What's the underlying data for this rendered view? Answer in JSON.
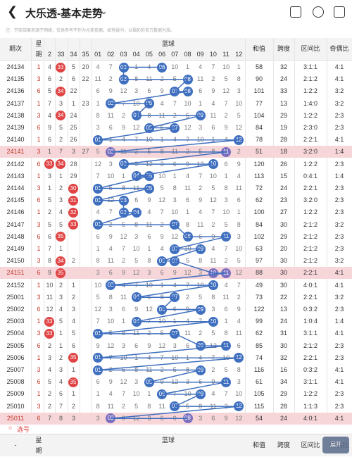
{
  "header": {
    "title": "大乐透-基本走势",
    "back_icon": "back-arrow-icon",
    "menu_icon": "chevron-down-icon"
  },
  "note": "注：开奖结果来源于网络，仅供参考不作为兑奖依据。如有疑问，以福彩彩官方数据为准。",
  "table_header": {
    "issue": "期次",
    "front_star": "星",
    "front_period": "期",
    "front_cols": [
      "2",
      "33",
      "34",
      "35"
    ],
    "blue_label": "蓝球",
    "blue_cols": [
      "01",
      "02",
      "03",
      "04",
      "05",
      "06",
      "07",
      "08",
      "09",
      "10",
      "11",
      "12"
    ],
    "sum": "和值",
    "span": "跨度",
    "zone": "区间比",
    "odd_even": "奇偶比"
  },
  "rows": [
    {
      "issue": "24134",
      "f": [
        "1",
        "4",
        "33",
        "5",
        "20"
      ],
      "blue": [
        6,
        3
      ],
      "sum": "58",
      "span": "32",
      "zone": "3:1:1",
      "oe": "4:1",
      "hl": false
    },
    {
      "issue": "24135",
      "f": [
        "3",
        "6",
        "2",
        "6",
        "22"
      ],
      "blue": [
        3,
        8
      ],
      "sum": "90",
      "span": "24",
      "zone": "2:1:2",
      "oe": "4:1",
      "hl": false
    },
    {
      "issue": "24136",
      "f": [
        "6",
        "5",
        "34",
        "22",
        ""
      ],
      "blue": [
        7,
        8
      ],
      "sum": "101",
      "span": "33",
      "zone": "1:2:2",
      "oe": "3:2",
      "hl": false
    },
    {
      "issue": "24137",
      "f": [
        "1",
        "7",
        "3",
        "1",
        "23"
      ],
      "blue": [
        2,
        5
      ],
      "sum": "77",
      "span": "13",
      "zone": "1:4:0",
      "oe": "3:2",
      "hl": false
    },
    {
      "issue": "24138",
      "f": [
        "3",
        "4",
        "34",
        "24",
        ""
      ],
      "blue": [
        4,
        9
      ],
      "sum": "104",
      "span": "29",
      "zone": "1:2:2",
      "oe": "2:3",
      "hl": false
    },
    {
      "issue": "24139",
      "f": [
        "6",
        "9",
        "5",
        "25",
        ""
      ],
      "blue": [
        5,
        7
      ],
      "sum": "84",
      "span": "19",
      "zone": "2:3:0",
      "oe": "2:3",
      "hl": false
    },
    {
      "issue": "24140",
      "f": [
        "1",
        "6",
        "2",
        "26",
        ""
      ],
      "blue": [
        1,
        12
      ],
      "sum": "78",
      "span": "28",
      "zone": "2:2:1",
      "oe": "4:1",
      "hl": false
    },
    {
      "issue": "24141",
      "f": [
        "3",
        "1",
        "7",
        "3",
        "27"
      ],
      "blue": [
        2,
        11
      ],
      "sum": "51",
      "span": "18",
      "zone": "3:2:0",
      "oe": "1:4",
      "hl": true
    },
    {
      "issue": "24142",
      "f": [
        "6",
        "33",
        "34",
        "28",
        ""
      ],
      "blue": [
        3,
        10
      ],
      "sum": "120",
      "span": "26",
      "zone": "1:2:2",
      "oe": "2:3",
      "hl": false
    },
    {
      "issue": "24143",
      "f": [
        "1",
        "3",
        "1",
        "29",
        ""
      ],
      "blue": [
        4,
        5
      ],
      "sum": "113",
      "span": "15",
      "zone": "0:4:1",
      "oe": "1:4",
      "hl": false
    },
    {
      "issue": "24144",
      "f": [
        "3",
        "1",
        "2",
        "30",
        ""
      ],
      "blue": [
        1,
        5
      ],
      "sum": "72",
      "span": "24",
      "zone": "2:2:1",
      "oe": "2:3",
      "hl": false
    },
    {
      "issue": "24145",
      "f": [
        "6",
        "5",
        "3",
        "31",
        ""
      ],
      "blue": [
        1,
        3
      ],
      "sum": "62",
      "span": "23",
      "zone": "3:2:0",
      "oe": "2:3",
      "hl": false
    },
    {
      "issue": "24146",
      "f": [
        "1",
        "2",
        "4",
        "32",
        ""
      ],
      "blue": [
        3,
        4
      ],
      "sum": "100",
      "span": "27",
      "zone": "1:2:2",
      "oe": "2:3",
      "hl": false
    },
    {
      "issue": "24147",
      "f": [
        "3",
        "5",
        "5",
        "33",
        ""
      ],
      "blue": [
        1,
        7
      ],
      "sum": "84",
      "span": "30",
      "zone": "2:1:2",
      "oe": "3:2",
      "hl": false
    },
    {
      "issue": "24148",
      "f": [
        "6",
        "6",
        "35",
        ""
      ],
      "blue": [
        8,
        11
      ],
      "sum": "102",
      "span": "29",
      "zone": "2:1:2",
      "oe": "2:3",
      "hl": false
    },
    {
      "issue": "24149",
      "f": [
        "1",
        "7",
        "1",
        ""
      ],
      "blue": [
        7,
        9
      ],
      "sum": "63",
      "span": "20",
      "zone": "2:1:2",
      "oe": "2:3",
      "hl": false
    },
    {
      "issue": "24150",
      "f": [
        "3",
        "8",
        "34",
        "2",
        ""
      ],
      "blue": [
        6,
        7
      ],
      "sum": "97",
      "span": "30",
      "zone": "2:1:2",
      "oe": "3:2",
      "hl": false
    },
    {
      "issue": "24151",
      "f": [
        "6",
        "9",
        "35",
        ""
      ],
      "blue": [
        10,
        11
      ],
      "sum": "88",
      "span": "30",
      "zone": "2:2:1",
      "oe": "4:1",
      "hl": true
    },
    {
      "issue": "24152",
      "f": [
        "1",
        "10",
        "2",
        "1",
        ""
      ],
      "blue": [
        2,
        10
      ],
      "sum": "49",
      "span": "30",
      "zone": "4:0:1",
      "oe": "4:1",
      "hl": false
    },
    {
      "issue": "25001",
      "f": [
        "3",
        "11",
        "3",
        "2",
        ""
      ],
      "blue": [
        4,
        7
      ],
      "sum": "73",
      "span": "22",
      "zone": "2:2:1",
      "oe": "3:2",
      "hl": false
    },
    {
      "issue": "25002",
      "f": [
        "6",
        "12",
        "4",
        "3",
        ""
      ],
      "blue": [
        6,
        9
      ],
      "sum": "122",
      "span": "13",
      "zone": "0:3:2",
      "oe": "2:3",
      "hl": false
    },
    {
      "issue": "25003",
      "f": [
        "1",
        "33",
        "5",
        "4",
        ""
      ],
      "blue": [
        4,
        10
      ],
      "sum": "99",
      "span": "24",
      "zone": "1:0:4",
      "oe": "1:4",
      "hl": false
    },
    {
      "issue": "25004",
      "f": [
        "3",
        "33",
        "1",
        "5",
        ""
      ],
      "blue": [
        1,
        7
      ],
      "sum": "62",
      "span": "31",
      "zone": "3:1:1",
      "oe": "4:1",
      "hl": false
    },
    {
      "issue": "25005",
      "f": [
        "6",
        "2",
        "1",
        "6",
        ""
      ],
      "blue": [
        9,
        11
      ],
      "sum": "85",
      "span": "30",
      "zone": "2:1:2",
      "oe": "2:3",
      "hl": false
    },
    {
      "issue": "25006",
      "f": [
        "1",
        "3",
        "2",
        "35",
        ""
      ],
      "blue": [
        1,
        12
      ],
      "sum": "74",
      "span": "32",
      "zone": "2:2:1",
      "oe": "2:3",
      "hl": false
    },
    {
      "issue": "25007",
      "f": [
        "3",
        "4",
        "3",
        "1",
        ""
      ],
      "blue": [
        1,
        9
      ],
      "sum": "116",
      "span": "16",
      "zone": "0:3:2",
      "oe": "4:1",
      "hl": false
    },
    {
      "issue": "25008",
      "f": [
        "6",
        "5",
        "4",
        "35",
        ""
      ],
      "blue": [
        5,
        11
      ],
      "sum": "61",
      "span": "34",
      "zone": "3:1:1",
      "oe": "4:1",
      "hl": false
    },
    {
      "issue": "25009",
      "f": [
        "1",
        "2",
        "6",
        "1",
        ""
      ],
      "blue": [
        6,
        9
      ],
      "sum": "105",
      "span": "29",
      "zone": "1:2:2",
      "oe": "2:3",
      "hl": false
    },
    {
      "issue": "25010",
      "f": [
        "3",
        "2",
        "7",
        "2",
        ""
      ],
      "blue": [
        7,
        12
      ],
      "sum": "115",
      "span": "28",
      "zone": "1:1:3",
      "oe": "2:3",
      "hl": false
    },
    {
      "issue": "25011",
      "f": [
        "6",
        "7",
        "8",
        "3",
        ""
      ],
      "blue": [
        2,
        8
      ],
      "sum": "54",
      "span": "24",
      "zone": "4:0:1",
      "oe": "4:1",
      "hl": true
    }
  ],
  "xuanhao": "选号",
  "float_btn": "展开"
}
